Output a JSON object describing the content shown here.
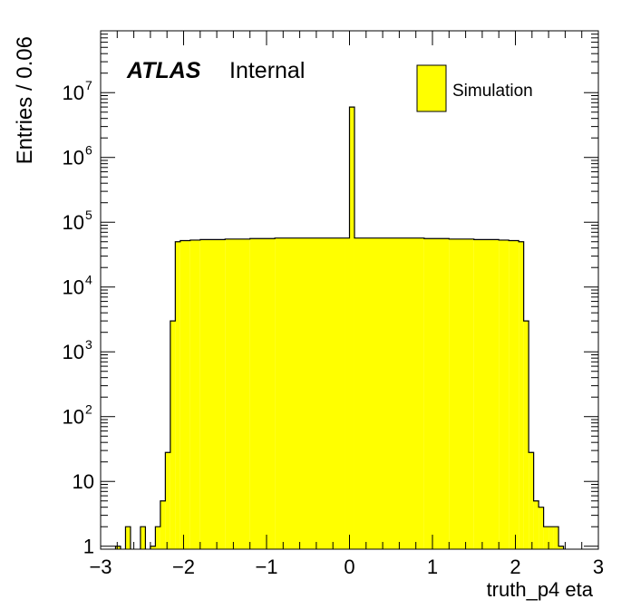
{
  "chart_data": {
    "type": "histogram",
    "xlabel": "truth_p4 eta",
    "ylabel": "Entries / 0.06",
    "xlim": [
      -3,
      3
    ],
    "ylim": [
      0.9,
      90000000.0
    ],
    "ylog": true,
    "grid": false,
    "legend_position": "top-right",
    "bin_width": 0.06,
    "annotation": {
      "bold_italic": "ATLAS",
      "normal": "Internal"
    },
    "x_tick_labels": [
      "−3",
      "−2",
      "−1",
      "0",
      "1",
      "2",
      "3"
    ],
    "x_tick_values": [
      -3,
      -2,
      -1,
      0,
      1,
      2,
      3
    ],
    "y_tick_labels": [
      {
        "value": 1,
        "base": "1",
        "exp": ""
      },
      {
        "value": 10,
        "base": "10",
        "exp": ""
      },
      {
        "value": 100,
        "base": "10",
        "exp": "2"
      },
      {
        "value": 1000,
        "base": "10",
        "exp": "3"
      },
      {
        "value": 10000,
        "base": "10",
        "exp": "4"
      },
      {
        "value": 100000,
        "base": "10",
        "exp": "5"
      },
      {
        "value": 1000000,
        "base": "10",
        "exp": "6"
      },
      {
        "value": 10000000,
        "base": "10",
        "exp": "7"
      }
    ],
    "series": [
      {
        "name": "Simulation",
        "color": "#ffff00",
        "edge_color": "#000000",
        "bins": [
          {
            "lo": -2.82,
            "hi": -2.76,
            "value": 1
          },
          {
            "lo": -2.7,
            "hi": -2.64,
            "value": 2
          },
          {
            "lo": -2.52,
            "hi": -2.46,
            "value": 2
          },
          {
            "lo": -2.4,
            "hi": -2.34,
            "value": 1
          },
          {
            "lo": -2.34,
            "hi": -2.28,
            "value": 2
          },
          {
            "lo": -2.28,
            "hi": -2.22,
            "value": 5
          },
          {
            "lo": -2.22,
            "hi": -2.16,
            "value": 28
          },
          {
            "lo": -2.16,
            "hi": -2.1,
            "value": 3000
          },
          {
            "lo": -2.1,
            "hi": -2.04,
            "value": 50000
          },
          {
            "lo": -2.04,
            "hi": -1.92,
            "value": 52000
          },
          {
            "lo": -1.92,
            "hi": -1.8,
            "value": 53000
          },
          {
            "lo": -1.8,
            "hi": -1.5,
            "value": 54000
          },
          {
            "lo": -1.5,
            "hi": -1.2,
            "value": 55000
          },
          {
            "lo": -1.2,
            "hi": -0.9,
            "value": 56000
          },
          {
            "lo": -0.9,
            "hi": -0.06,
            "value": 57000
          },
          {
            "lo": -0.06,
            "hi": 0.0,
            "value": 57000
          },
          {
            "lo": 0.0,
            "hi": 0.06,
            "value": 6000000
          },
          {
            "lo": 0.06,
            "hi": 0.9,
            "value": 57000
          },
          {
            "lo": 0.9,
            "hi": 1.2,
            "value": 56000
          },
          {
            "lo": 1.2,
            "hi": 1.5,
            "value": 55000
          },
          {
            "lo": 1.5,
            "hi": 1.8,
            "value": 54000
          },
          {
            "lo": 1.8,
            "hi": 1.92,
            "value": 53000
          },
          {
            "lo": 1.92,
            "hi": 2.04,
            "value": 52000
          },
          {
            "lo": 2.04,
            "hi": 2.1,
            "value": 50000
          },
          {
            "lo": 2.1,
            "hi": 2.16,
            "value": 3000
          },
          {
            "lo": 2.16,
            "hi": 2.22,
            "value": 28
          },
          {
            "lo": 2.22,
            "hi": 2.28,
            "value": 5
          },
          {
            "lo": 2.28,
            "hi": 2.34,
            "value": 4
          },
          {
            "lo": 2.34,
            "hi": 2.4,
            "value": 2
          },
          {
            "lo": 2.4,
            "hi": 2.46,
            "value": 2
          },
          {
            "lo": 2.46,
            "hi": 2.52,
            "value": 2
          },
          {
            "lo": 2.52,
            "hi": 2.58,
            "value": 1
          }
        ]
      }
    ]
  }
}
